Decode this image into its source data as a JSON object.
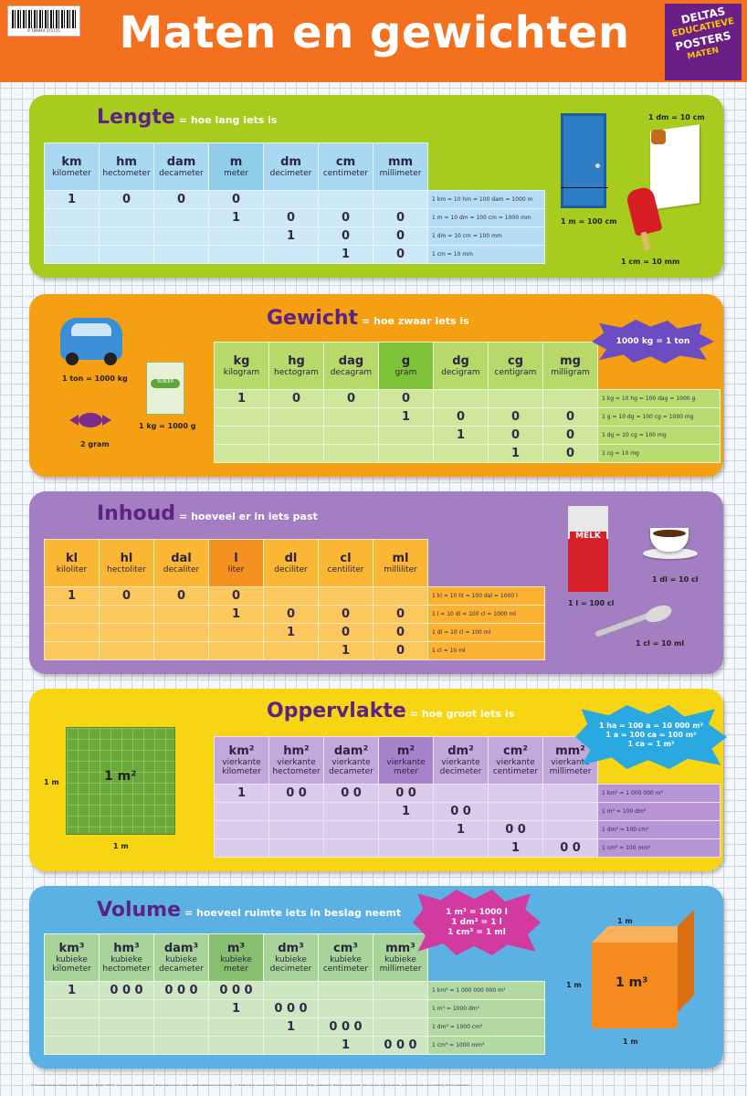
{
  "header": {
    "title": "Maten en gewichten",
    "barcode_number": "9 789044 371715",
    "brand": [
      "DELTAS",
      "EDUCATIEVE",
      "POSTERS",
      "MATEN"
    ]
  },
  "lengte": {
    "title": "Lengte",
    "subtitle": "= hoe lang iets is",
    "units": [
      {
        "abbr": "km",
        "name": "kilometer"
      },
      {
        "abbr": "hm",
        "name": "hectometer"
      },
      {
        "abbr": "dam",
        "name": "decameter"
      },
      {
        "abbr": "m",
        "name": "meter"
      },
      {
        "abbr": "dm",
        "name": "decimeter"
      },
      {
        "abbr": "cm",
        "name": "centimeter"
      },
      {
        "abbr": "mm",
        "name": "millimeter"
      }
    ],
    "rows": [
      {
        "cells": [
          "1",
          "0",
          "0",
          "0",
          "",
          "",
          ""
        ],
        "eq": "1 km = 10 hm = 100 dam = 1000 m"
      },
      {
        "cells": [
          "",
          "",
          "",
          "1",
          "0",
          "0",
          "0"
        ],
        "eq": "1 m = 10 dm = 100 cm = 1000 mm"
      },
      {
        "cells": [
          "",
          "",
          "",
          "",
          "1",
          "0",
          "0"
        ],
        "eq": "1 dm = 10 cm = 100 mm"
      },
      {
        "cells": [
          "",
          "",
          "",
          "",
          "",
          "1",
          "0"
        ],
        "eq": "1 cm = 10 mm"
      }
    ],
    "captions": {
      "door": "1 m = 100 cm",
      "roll": "1 dm = 10 cm",
      "popsicle": "1 cm = 10 mm"
    }
  },
  "gewicht": {
    "title": "Gewicht",
    "subtitle": "= hoe zwaar iets is",
    "units": [
      {
        "abbr": "kg",
        "name": "kilogram"
      },
      {
        "abbr": "hg",
        "name": "hectogram"
      },
      {
        "abbr": "dag",
        "name": "decagram"
      },
      {
        "abbr": "g",
        "name": "gram"
      },
      {
        "abbr": "dg",
        "name": "decigram"
      },
      {
        "abbr": "cg",
        "name": "centigram"
      },
      {
        "abbr": "mg",
        "name": "milligram"
      }
    ],
    "rows": [
      {
        "cells": [
          "1",
          "0",
          "0",
          "0",
          "",
          "",
          ""
        ],
        "eq": "1 kg = 10 hg = 100 dag = 1000 g"
      },
      {
        "cells": [
          "",
          "",
          "",
          "1",
          "0",
          "0",
          "0"
        ],
        "eq": "1 g = 10 dg = 100 cg = 1000 mg"
      },
      {
        "cells": [
          "",
          "",
          "",
          "",
          "1",
          "0",
          "0"
        ],
        "eq": "1 dg = 10 cg = 100 mg"
      },
      {
        "cells": [
          "",
          "",
          "",
          "",
          "",
          "1",
          "0"
        ],
        "eq": "1 cg = 10 mg"
      }
    ],
    "burst": "1000 kg = 1 ton",
    "captions": {
      "car": "1 ton = 1000 kg",
      "sugar": "1 kg = 1000 g",
      "candy": "2 gram",
      "sugar_label": "SUIKER"
    }
  },
  "inhoud": {
    "title": "Inhoud",
    "subtitle": "= hoeveel er in iets past",
    "units": [
      {
        "abbr": "kl",
        "name": "kiloliter"
      },
      {
        "abbr": "hl",
        "name": "hectoliter"
      },
      {
        "abbr": "dal",
        "name": "decaliter"
      },
      {
        "abbr": "l",
        "name": "liter"
      },
      {
        "abbr": "dl",
        "name": "deciliter"
      },
      {
        "abbr": "cl",
        "name": "centiliter"
      },
      {
        "abbr": "ml",
        "name": "milliliter"
      }
    ],
    "rows": [
      {
        "cells": [
          "1",
          "0",
          "0",
          "0",
          "",
          "",
          ""
        ],
        "eq": "1 kl = 10 hl = 100 dal = 1000 l"
      },
      {
        "cells": [
          "",
          "",
          "",
          "1",
          "0",
          "0",
          "0"
        ],
        "eq": "1 l = 10 dl = 100 cl = 1000 ml"
      },
      {
        "cells": [
          "",
          "",
          "",
          "",
          "1",
          "0",
          "0"
        ],
        "eq": "1 dl = 10 cl = 100 ml"
      },
      {
        "cells": [
          "",
          "",
          "",
          "",
          "",
          "1",
          "0"
        ],
        "eq": "1 cl = 10 ml"
      }
    ],
    "captions": {
      "milk": "1 l = 100 cl",
      "milk_label": "MELK",
      "cup": "1 dl = 10 cl",
      "spoon": "1 cl = 10 ml"
    }
  },
  "oppervlakte": {
    "title": "Oppervlakte",
    "subtitle": "= hoe groot iets is",
    "units": [
      {
        "abbr": "km²",
        "name": "vierkante kilometer"
      },
      {
        "abbr": "hm²",
        "name": "vierkante hectometer"
      },
      {
        "abbr": "dam²",
        "name": "vierkante decameter"
      },
      {
        "abbr": "m²",
        "name": "vierkante meter"
      },
      {
        "abbr": "dm²",
        "name": "vierkante decimeter"
      },
      {
        "abbr": "cm²",
        "name": "vierkante centimeter"
      },
      {
        "abbr": "mm²",
        "name": "vierkante millimeter"
      }
    ],
    "rows": [
      {
        "cells": [
          "1",
          "0 0",
          "0 0",
          "0 0",
          "",
          "",
          ""
        ],
        "eq": "1 km² = 1 000 000 m²"
      },
      {
        "cells": [
          "",
          "",
          "",
          "1",
          "0 0",
          "",
          ""
        ],
        "eq": "1 m² = 100 dm²"
      },
      {
        "cells": [
          "",
          "",
          "",
          "",
          "1",
          "0 0",
          ""
        ],
        "eq": "1 dm² = 100 cm²"
      },
      {
        "cells": [
          "",
          "",
          "",
          "",
          "",
          "1",
          "0 0"
        ],
        "eq": "1 cm² = 100 mm²"
      }
    ],
    "burst": [
      "1 ha = 100 a = 10 000 m²",
      "1 a = 100 ca = 100 m²",
      "1 ca = 1 m²"
    ],
    "square_label": "1 m²",
    "side_label": "1 m"
  },
  "volume": {
    "title": "Volume",
    "subtitle": "= hoeveel ruimte iets in beslag neemt",
    "units": [
      {
        "abbr": "km³",
        "name": "kubieke kilometer"
      },
      {
        "abbr": "hm³",
        "name": "kubieke hectometer"
      },
      {
        "abbr": "dam³",
        "name": "kubieke decameter"
      },
      {
        "abbr": "m³",
        "name": "kubieke meter"
      },
      {
        "abbr": "dm³",
        "name": "kubieke decimeter"
      },
      {
        "abbr": "cm³",
        "name": "kubieke centimeter"
      },
      {
        "abbr": "mm³",
        "name": "kubieke millimeter"
      }
    ],
    "rows": [
      {
        "cells": [
          "1",
          "0 0 0",
          "0 0 0",
          "0 0 0",
          "",
          "",
          ""
        ],
        "eq": "1 km³ = 1 000 000 000 m³"
      },
      {
        "cells": [
          "",
          "",
          "",
          "1",
          "0 0 0",
          "",
          ""
        ],
        "eq": "1 m³ = 1000 dm³"
      },
      {
        "cells": [
          "",
          "",
          "",
          "",
          "1",
          "0 0 0",
          ""
        ],
        "eq": "1 dm³ = 1000 cm³"
      },
      {
        "cells": [
          "",
          "",
          "",
          "",
          "",
          "1",
          "0 0 0"
        ],
        "eq": "1 cm³ = 1000 mm³"
      }
    ],
    "burst": [
      "1 m³ = 1000 l",
      "1 dm³ = 1 l",
      "1 cm³ = 1 ml"
    ],
    "cube_label": "1 m³",
    "side_label": "1 m"
  },
  "footer": "© Zuidnederlandse Uitgeverij N.V., Aartselaar, België, MMXX. Alle rechten voorbehouden. Deze uitgave door: Deltas, België-Nederland. Illustraties: © Shutterstock.com, auteurs: Elena Gorelova, ecx, A Zvyk, anterovium, Nadezh Karachenko, Jiris Lancaki, Andrew Roche, Jacques Sirumas, Lorna Stilling, Dmitry Rukhlenko."
}
